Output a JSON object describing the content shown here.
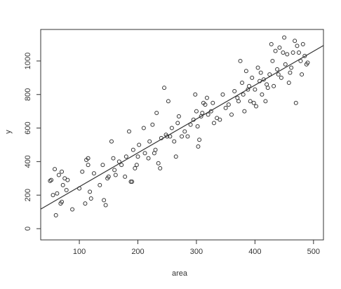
{
  "chart_data": {
    "type": "scatter",
    "x_label": "area",
    "y_label": "y",
    "x": [
      50,
      52,
      55,
      58,
      60,
      62,
      65,
      68,
      70,
      70,
      72,
      75,
      78,
      80,
      88,
      100,
      105,
      110,
      112,
      115,
      115,
      118,
      120,
      125,
      135,
      140,
      142,
      145,
      148,
      150,
      155,
      158,
      160,
      162,
      168,
      172,
      178,
      180,
      185,
      188,
      190,
      192,
      195,
      198,
      200,
      202,
      210,
      212,
      218,
      220,
      225,
      228,
      230,
      232,
      235,
      238,
      240,
      245,
      248,
      250,
      252,
      255,
      258,
      262,
      265,
      268,
      270,
      275,
      280,
      285,
      290,
      295,
      298,
      300,
      302,
      303,
      305,
      308,
      310,
      312,
      315,
      318,
      320,
      325,
      328,
      330,
      335,
      340,
      345,
      350,
      355,
      360,
      365,
      370,
      372,
      375,
      378,
      380,
      382,
      385,
      388,
      390,
      392,
      395,
      398,
      400,
      402,
      405,
      408,
      410,
      412,
      415,
      418,
      420,
      422,
      425,
      428,
      430,
      432,
      435,
      438,
      440,
      442,
      445,
      448,
      450,
      452,
      455,
      458,
      460,
      462,
      465,
      468,
      470,
      472,
      475,
      478,
      480,
      482,
      485,
      488,
      490
    ],
    "y": [
      285,
      290,
      200,
      355,
      80,
      210,
      320,
      150,
      160,
      340,
      260,
      300,
      230,
      290,
      115,
      240,
      340,
      150,
      410,
      380,
      420,
      220,
      180,
      330,
      260,
      380,
      170,
      140,
      300,
      310,
      520,
      420,
      350,
      320,
      400,
      380,
      310,
      430,
      580,
      280,
      280,
      470,
      360,
      380,
      430,
      500,
      600,
      450,
      420,
      520,
      620,
      450,
      470,
      690,
      390,
      360,
      540,
      840,
      560,
      550,
      760,
      550,
      600,
      520,
      430,
      630,
      670,
      550,
      580,
      550,
      620,
      650,
      800,
      700,
      610,
      490,
      530,
      670,
      690,
      750,
      740,
      780,
      680,
      700,
      750,
      630,
      660,
      650,
      800,
      720,
      740,
      680,
      820,
      780,
      760,
      1000,
      870,
      800,
      700,
      940,
      830,
      850,
      760,
      900,
      750,
      830,
      730,
      960,
      880,
      930,
      800,
      890,
      760,
      860,
      840,
      920,
      1100,
      1000,
      850,
      1060,
      950,
      920,
      1080,
      900,
      1050,
      1140,
      980,
      1040,
      870,
      930,
      960,
      1050,
      1120,
      750,
      1090,
      1050,
      1000,
      920,
      1100,
      1030,
      980,
      990
    ],
    "color": "#333333",
    "fit": {
      "intercept": 48,
      "slope": 2.02
    },
    "xlim": [
      34,
      517
    ],
    "ylim": [
      -67,
      1188
    ],
    "xticks": [
      100,
      200,
      300,
      400,
      500
    ],
    "yticks": [
      0,
      200,
      400,
      600,
      800,
      1000
    ]
  }
}
